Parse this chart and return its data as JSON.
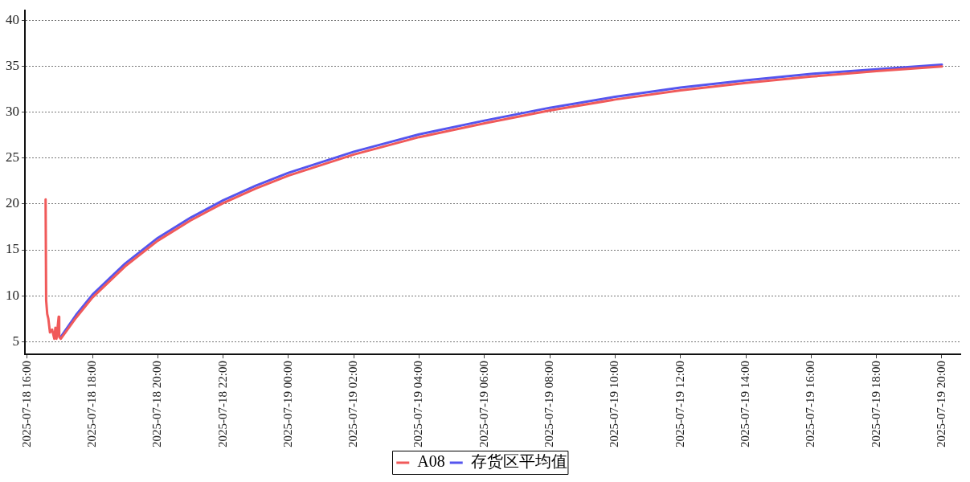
{
  "chart_data": {
    "type": "line",
    "xlim": [
      "2025-07-18T15:56",
      "2025-07-19T20:34"
    ],
    "xticks": [
      {
        "value": "2025-07-18T16:00",
        "label": "2025-07-18 16:00"
      },
      {
        "value": "2025-07-18T18:00",
        "label": "2025-07-18 18:00"
      },
      {
        "value": "2025-07-18T20:00",
        "label": "2025-07-18 20:00"
      },
      {
        "value": "2025-07-18T22:00",
        "label": "2025-07-18 22:00"
      },
      {
        "value": "2025-07-19T00:00",
        "label": "2025-07-19 00:00"
      },
      {
        "value": "2025-07-19T02:00",
        "label": "2025-07-19 02:00"
      },
      {
        "value": "2025-07-19T04:00",
        "label": "2025-07-19 04:00"
      },
      {
        "value": "2025-07-19T06:00",
        "label": "2025-07-19 06:00"
      },
      {
        "value": "2025-07-19T08:00",
        "label": "2025-07-19 08:00"
      },
      {
        "value": "2025-07-19T10:00",
        "label": "2025-07-19 10:00"
      },
      {
        "value": "2025-07-19T12:00",
        "label": "2025-07-19 12:00"
      },
      {
        "value": "2025-07-19T14:00",
        "label": "2025-07-19 14:00"
      },
      {
        "value": "2025-07-19T16:00",
        "label": "2025-07-19 16:00"
      },
      {
        "value": "2025-07-19T18:00",
        "label": "2025-07-19 18:00"
      },
      {
        "value": "2025-07-19T20:00",
        "label": "2025-07-19 20:00"
      }
    ],
    "ylim": [
      3.6,
      41.1
    ],
    "yticks": [
      5,
      10,
      15,
      20,
      25,
      30,
      35,
      40
    ],
    "grid": "y",
    "legend": "bottom",
    "marker": "none",
    "line_style": "solid",
    "series": [
      {
        "name": "A08",
        "color": "#f05a5a",
        "x": [
          "2025-07-18T16:34",
          "2025-07-18T16:35",
          "2025-07-18T16:37",
          "2025-07-18T16:39",
          "2025-07-18T16:42",
          "2025-07-18T16:46",
          "2025-07-18T16:50",
          "2025-07-18T16:52",
          "2025-07-18T16:54",
          "2025-07-18T16:58",
          "2025-07-18T16:59",
          "2025-07-18T17:02",
          "2025-07-18T17:30",
          "2025-07-18T18:00",
          "2025-07-18T19:00",
          "2025-07-18T20:00",
          "2025-07-18T21:00",
          "2025-07-18T22:00",
          "2025-07-18T23:00",
          "2025-07-19T00:00",
          "2025-07-19T02:00",
          "2025-07-19T04:00",
          "2025-07-19T06:00",
          "2025-07-19T08:00",
          "2025-07-19T10:00",
          "2025-07-19T12:00",
          "2025-07-19T14:00",
          "2025-07-19T16:00",
          "2025-07-19T18:00",
          "2025-07-19T20:00"
        ],
        "values": [
          20.5,
          9.5,
          8.0,
          7.5,
          6.0,
          6.3,
          5.3,
          6.5,
          5.3,
          7.7,
          5.5,
          5.3,
          7.6,
          9.8,
          13.2,
          16.0,
          18.2,
          20.1,
          21.7,
          23.1,
          25.4,
          27.3,
          28.8,
          30.2,
          31.4,
          32.4,
          33.2,
          33.9,
          34.5,
          35.0
        ]
      },
      {
        "name": "存货区平均值",
        "color": "#5555ee",
        "x": [
          "2025-07-18T17:02",
          "2025-07-18T17:30",
          "2025-07-18T18:00",
          "2025-07-18T19:00",
          "2025-07-18T20:00",
          "2025-07-18T21:00",
          "2025-07-18T22:00",
          "2025-07-18T23:00",
          "2025-07-19T00:00",
          "2025-07-19T02:00",
          "2025-07-19T04:00",
          "2025-07-19T06:00",
          "2025-07-19T08:00",
          "2025-07-19T10:00",
          "2025-07-19T12:00",
          "2025-07-19T14:00",
          "2025-07-19T16:00",
          "2025-07-19T18:00",
          "2025-07-19T20:00"
        ],
        "values": [
          5.5,
          7.9,
          10.1,
          13.5,
          16.3,
          18.5,
          20.4,
          22.0,
          23.4,
          25.7,
          27.6,
          29.1,
          30.5,
          31.7,
          32.7,
          33.5,
          34.2,
          34.7,
          35.2
        ]
      }
    ]
  }
}
